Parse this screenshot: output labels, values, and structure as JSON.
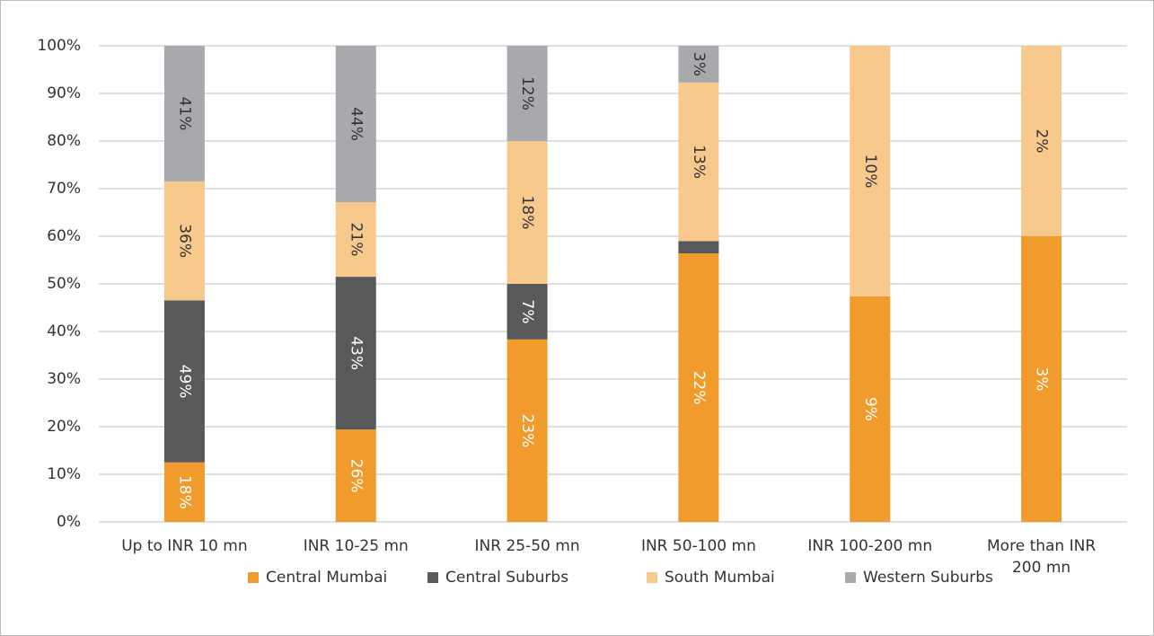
{
  "chart_data": {
    "type": "bar",
    "stacking": "percent",
    "categories": [
      "Up to INR 10 mn",
      "INR 10-25 mn",
      "INR 25-50 mn",
      "INR 50-100 mn",
      "INR 100-200 mn",
      "More than INR 200 mn"
    ],
    "series": [
      {
        "name": "Central Mumbai",
        "color": "#f09b2b",
        "label_color": "#ffffff",
        "values": [
          18,
          26,
          23,
          22,
          9,
          3
        ],
        "value_labels": [
          "18%",
          "26%",
          "23%",
          "22%",
          "9%",
          "3%"
        ]
      },
      {
        "name": "Central Suburbs",
        "color": "#58595b",
        "label_color": "#ffffff",
        "values": [
          49,
          43,
          7,
          1,
          0,
          0
        ],
        "value_labels": [
          "49%",
          "43%",
          "7%",
          null,
          null,
          null
        ]
      },
      {
        "name": "South Mumbai",
        "color": "#f7c98d",
        "label_color": "#333333",
        "values": [
          36,
          21,
          18,
          13,
          10,
          2
        ],
        "value_labels": [
          "36%",
          "21%",
          "18%",
          "13%",
          "10%",
          "2%"
        ]
      },
      {
        "name": "Western Suburbs",
        "color": "#a7a9ac",
        "label_color": "#333333",
        "values": [
          41,
          44,
          12,
          3,
          0,
          0
        ],
        "value_labels": [
          "41%",
          "44%",
          "12%",
          "3%",
          null,
          null
        ]
      }
    ],
    "ylim": [
      0,
      100
    ],
    "yticks": [
      {
        "value": 0,
        "label": "0%"
      },
      {
        "value": 10,
        "label": "10%"
      },
      {
        "value": 20,
        "label": "20%"
      },
      {
        "value": 30,
        "label": "30%"
      },
      {
        "value": 40,
        "label": "40%"
      },
      {
        "value": 50,
        "label": "50%"
      },
      {
        "value": 60,
        "label": "60%"
      },
      {
        "value": 70,
        "label": "70%"
      },
      {
        "value": 80,
        "label": "80%"
      },
      {
        "value": 90,
        "label": "90%"
      },
      {
        "value": 100,
        "label": "100%"
      }
    ],
    "grid": true,
    "legend": "bottom"
  }
}
